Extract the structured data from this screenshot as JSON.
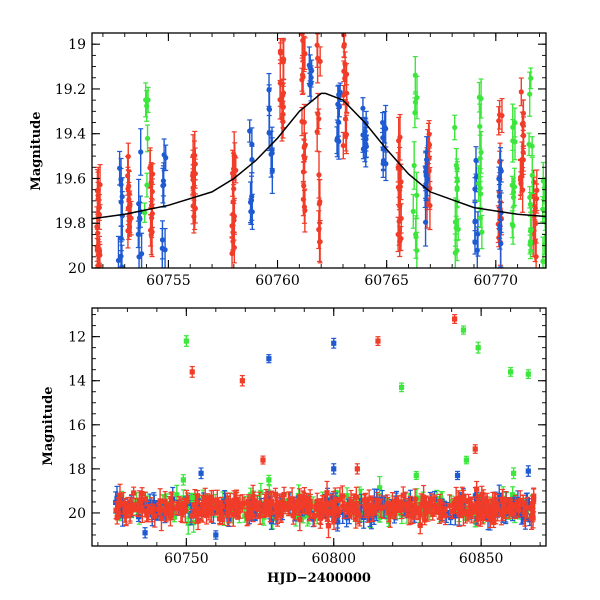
{
  "chart_data": [
    {
      "type": "scatter",
      "title": "",
      "xlabel": "",
      "ylabel": "Magnitude",
      "xlim": [
        60751.5,
        60772.3
      ],
      "ylim": [
        20.0,
        18.95
      ],
      "y_inverted": true,
      "grid": false,
      "xticks": [
        60755,
        60760,
        60765,
        60770
      ],
      "yticks": [
        19.0,
        19.2,
        19.4,
        19.6,
        19.8,
        20.0
      ],
      "xtick_labels": [
        "60755",
        "60760",
        "60765",
        "60770"
      ],
      "ytick_labels": [
        "19",
        "19.2",
        "19.4",
        "19.6",
        "19.8",
        "20"
      ],
      "colors": {
        "red": "#f03c28",
        "blue": "#1e5ad2",
        "green": "#3ce63c",
        "model": "#000000"
      },
      "model_curve": {
        "name": "",
        "peak_x": 60762.2,
        "peak_mag": 19.22,
        "baseline_mag": 19.79,
        "x": [
          60751.5,
          60753,
          60755,
          60757,
          60758,
          60759,
          60760,
          60761,
          60762,
          60762.2,
          60763,
          60764,
          60765,
          60766,
          60767,
          60769,
          60771,
          60772.3
        ],
        "y": [
          19.78,
          19.76,
          19.72,
          19.66,
          19.6,
          19.52,
          19.42,
          19.3,
          19.22,
          19.22,
          19.25,
          19.35,
          19.47,
          19.58,
          19.66,
          19.73,
          19.76,
          19.77
        ]
      },
      "series": [
        {
          "name": "",
          "color": "red",
          "clusters": [
            {
              "x": 60751.8,
              "mag": [
                19.55,
                20.0
              ],
              "n": 18
            },
            {
              "x": 60753.2,
              "mag": [
                19.5,
                19.85
              ],
              "n": 14
            },
            {
              "x": 60754.2,
              "mag": [
                19.55,
                19.9
              ],
              "n": 12
            },
            {
              "x": 60756.2,
              "mag": [
                19.45,
                19.85
              ],
              "n": 14
            },
            {
              "x": 60758.0,
              "mag": [
                19.35,
                19.95
              ],
              "n": 16
            },
            {
              "x": 60760.2,
              "mag": [
                18.95,
                19.35
              ],
              "n": 14
            },
            {
              "x": 60761.2,
              "mag": [
                18.95,
                19.75
              ],
              "n": 18
            },
            {
              "x": 60761.9,
              "mag": [
                18.95,
                19.9
              ],
              "n": 12
            },
            {
              "x": 60763.1,
              "mag": [
                18.95,
                19.6
              ],
              "n": 14
            },
            {
              "x": 60765.6,
              "mag": [
                19.4,
                19.9
              ],
              "n": 14
            },
            {
              "x": 60766.9,
              "mag": [
                19.4,
                19.75
              ],
              "n": 12
            },
            {
              "x": 60770.2,
              "mag": [
                19.3,
                19.9
              ],
              "n": 12
            },
            {
              "x": 60771.2,
              "mag": [
                19.2,
                19.7
              ],
              "n": 14
            },
            {
              "x": 60771.8,
              "mag": [
                19.55,
                19.95
              ],
              "n": 10
            }
          ]
        },
        {
          "name": "",
          "color": "blue",
          "clusters": [
            {
              "x": 60752.8,
              "mag": [
                19.55,
                20.0
              ],
              "n": 10
            },
            {
              "x": 60753.7,
              "mag": [
                19.4,
                20.0
              ],
              "n": 8
            },
            {
              "x": 60754.8,
              "mag": [
                19.45,
                19.95
              ],
              "n": 8
            },
            {
              "x": 60758.8,
              "mag": [
                19.35,
                19.8
              ],
              "n": 8
            },
            {
              "x": 60759.7,
              "mag": [
                19.2,
                19.6
              ],
              "n": 8
            },
            {
              "x": 60761.5,
              "mag": [
                19.05,
                19.3
              ],
              "n": 6
            },
            {
              "x": 60762.8,
              "mag": [
                19.2,
                19.45
              ],
              "n": 8
            },
            {
              "x": 60764.0,
              "mag": [
                19.25,
                19.55
              ],
              "n": 10
            },
            {
              "x": 60764.9,
              "mag": [
                19.35,
                19.6
              ],
              "n": 8
            },
            {
              "x": 60766.8,
              "mag": [
                19.5,
                19.85
              ],
              "n": 8
            },
            {
              "x": 60769.1,
              "mag": [
                19.5,
                19.95
              ],
              "n": 8
            },
            {
              "x": 60770.2,
              "mag": [
                19.55,
                20.0
              ],
              "n": 8
            }
          ]
        },
        {
          "name": "",
          "color": "green",
          "clusters": [
            {
              "x": 60754.0,
              "mag": [
                19.2,
                19.85
              ],
              "n": 6
            },
            {
              "x": 60766.3,
              "mag": [
                19.0,
                19.95
              ],
              "n": 10
            },
            {
              "x": 60768.2,
              "mag": [
                19.3,
                19.95
              ],
              "n": 12
            },
            {
              "x": 60769.3,
              "mag": [
                19.2,
                19.9
              ],
              "n": 10
            },
            {
              "x": 60770.8,
              "mag": [
                19.3,
                19.95
              ],
              "n": 10
            },
            {
              "x": 60771.6,
              "mag": [
                19.15,
                19.95
              ],
              "n": 12
            },
            {
              "x": 60772.2,
              "mag": [
                19.5,
                20.0
              ],
              "n": 8
            }
          ]
        }
      ]
    },
    {
      "type": "scatter",
      "title": "",
      "xlabel": "HJD−2400000",
      "ylabel": "Magnitude",
      "xlim": [
        60718,
        60872
      ],
      "ylim": [
        21.5,
        10.7
      ],
      "y_inverted": true,
      "grid": false,
      "xticks": [
        60750,
        60800,
        60850
      ],
      "yticks": [
        12,
        14,
        16,
        18,
        20
      ],
      "xtick_labels": [
        "60750",
        "60800",
        "60850"
      ],
      "ytick_labels": [
        "12",
        "14",
        "16",
        "18",
        "20"
      ],
      "colors": {
        "red": "#f03c28",
        "blue": "#1e5ad2",
        "green": "#3ce63c"
      },
      "baseline": {
        "x_range": [
          60726,
          60868
        ],
        "mag_center": 19.75,
        "mag_spread": 0.55
      },
      "series": [
        {
          "name": "",
          "color": "green",
          "outliers": [
            [
              60750,
              12.2
            ],
            [
              60749,
              18.5
            ],
            [
              60752,
              19.3
            ],
            [
              60778,
              18.5
            ],
            [
              60823,
              14.3
            ],
            [
              60828,
              18.3
            ],
            [
              60844,
              11.7
            ],
            [
              60849,
              12.5
            ],
            [
              60845,
              17.6
            ],
            [
              60860,
              13.6
            ],
            [
              60866,
              13.7
            ],
            [
              60861,
              18.2
            ]
          ]
        },
        {
          "name": "",
          "color": "blue",
          "outliers": [
            [
              60755,
              18.2
            ],
            [
              60778,
              13.0
            ],
            [
              60800,
              12.3
            ],
            [
              60800,
              18.0
            ],
            [
              60842,
              18.3
            ],
            [
              60866,
              18.1
            ],
            [
              60736,
              20.9
            ],
            [
              60760,
              21.0
            ]
          ]
        },
        {
          "name": "",
          "color": "red",
          "outliers": [
            [
              60752,
              13.6
            ],
            [
              60769,
              14.0
            ],
            [
              60776,
              17.6
            ],
            [
              60815,
              12.2
            ],
            [
              60808,
              18.0
            ],
            [
              60841,
              11.2
            ],
            [
              60848,
              17.1
            ]
          ]
        }
      ]
    }
  ]
}
